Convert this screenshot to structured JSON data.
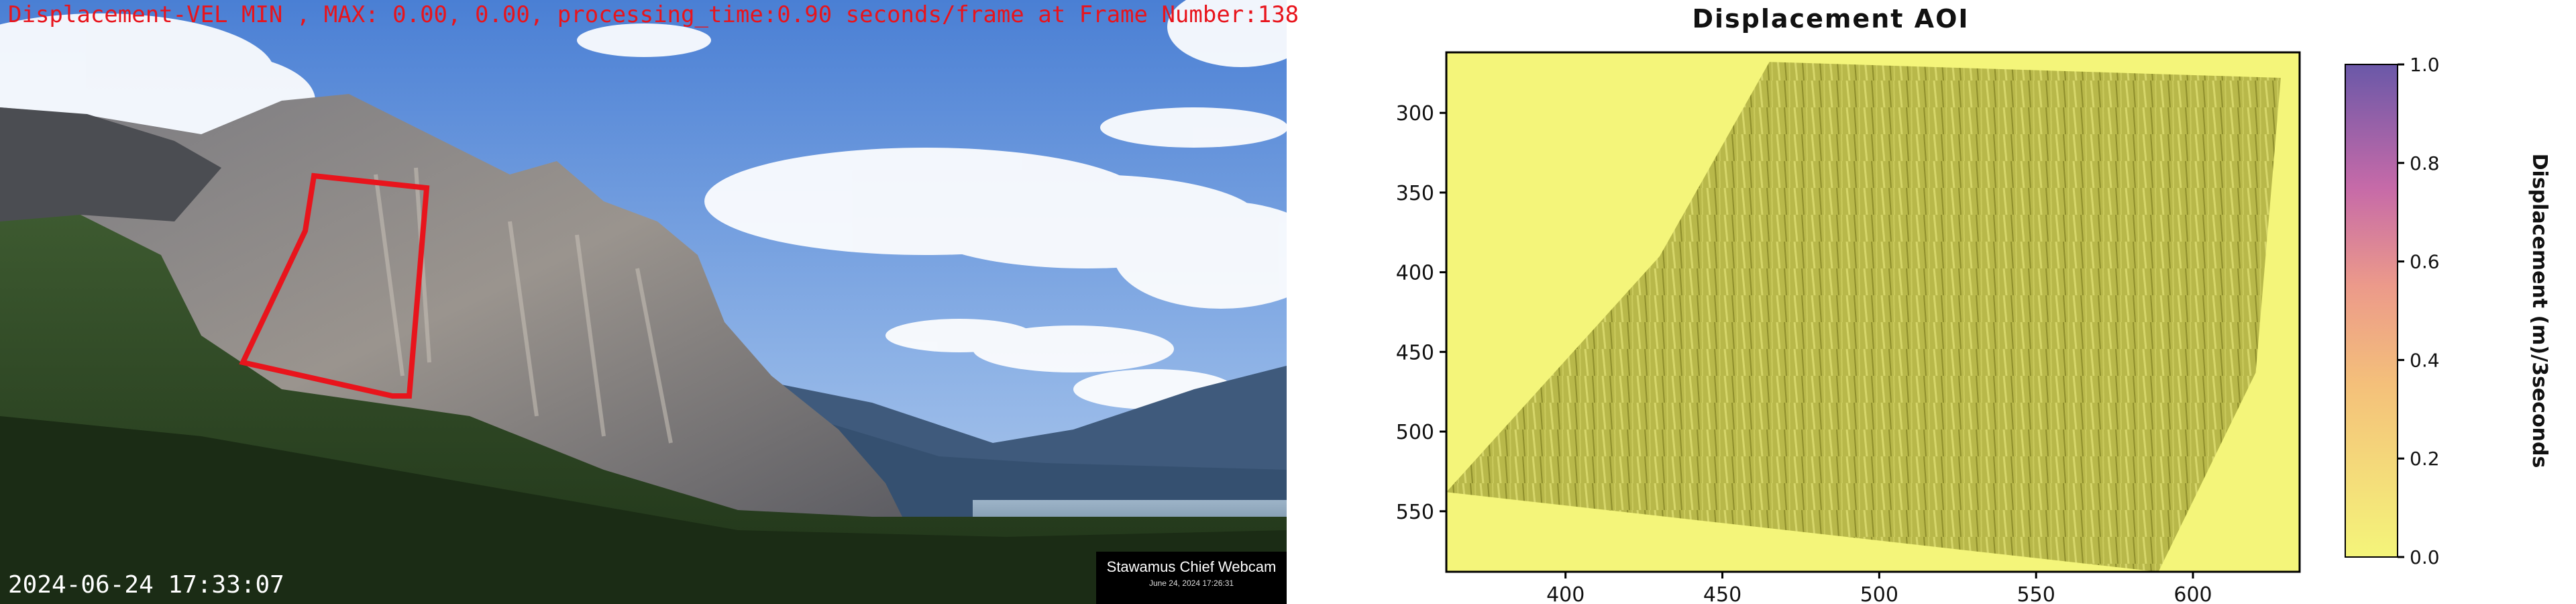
{
  "webcam": {
    "overlay_title": "Displacement-VEL MIN , MAX: 0.00, 0.00, processing_time:0.90 seconds/frame at Frame Number:138",
    "timestamp": "2024-06-24 17:33:07",
    "watermark_name": "Stawamus Chief Webcam",
    "watermark_date": "June 24, 2024 17:26:31",
    "roi_color": "#e8141c"
  },
  "plot": {
    "title": "Displacement AOI",
    "colorbar_label": "Displacement (m)/3seconds",
    "colors": {
      "low": "#f4f57a",
      "mid": "#f0a07a",
      "high": "#6a58a8"
    }
  },
  "chart_data": {
    "type": "heatmap",
    "title": "Displacement AOI",
    "x_ticks": [
      400,
      450,
      500,
      550,
      600
    ],
    "y_ticks": [
      300,
      350,
      400,
      450,
      500,
      550
    ],
    "xlim": [
      362,
      634
    ],
    "ylim": [
      588,
      262
    ],
    "colorbar": {
      "label": "Displacement (m)/3seconds",
      "ticks": [
        "0.0",
        "0.2",
        "0.4",
        "0.6",
        "0.8",
        "1.0"
      ],
      "range": [
        0.0,
        1.0
      ]
    },
    "aoi_polygon": [
      [
        465,
        268
      ],
      [
        628,
        278
      ],
      [
        620,
        463
      ],
      [
        589,
        588
      ],
      [
        362,
        538
      ],
      [
        430,
        390
      ]
    ]
  }
}
